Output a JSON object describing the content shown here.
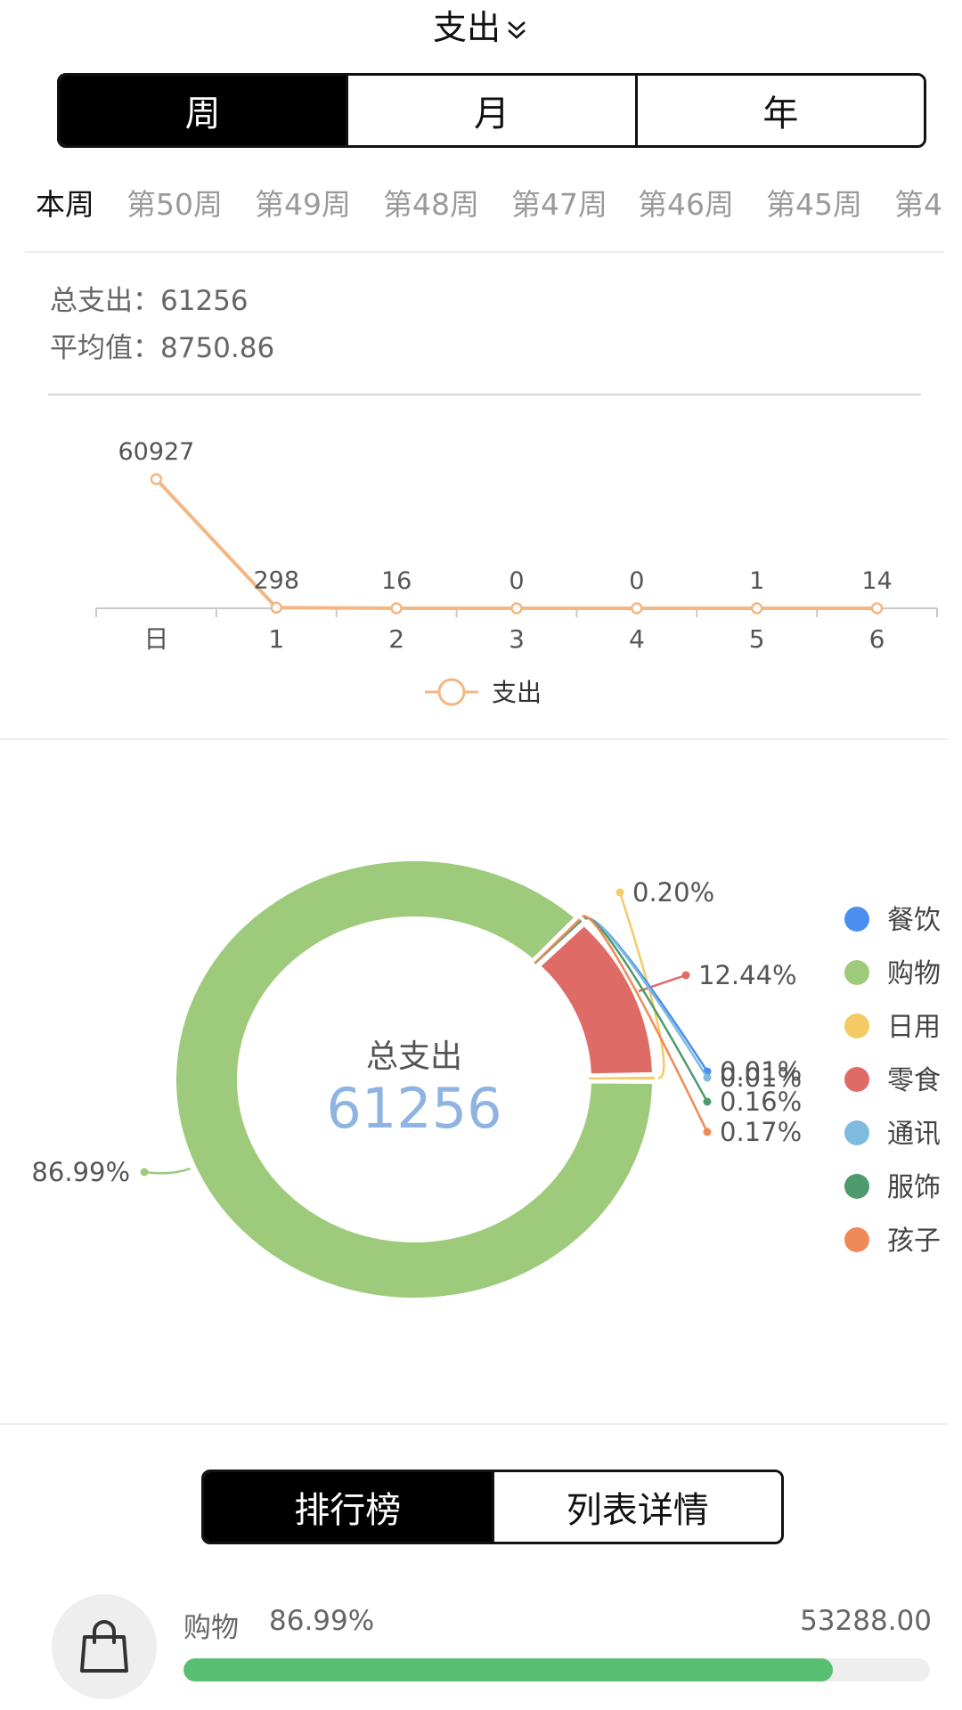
{
  "header": {
    "title": "支出"
  },
  "period_switch": {
    "options": [
      "周",
      "月",
      "年"
    ],
    "selected": "周"
  },
  "week_tabs": [
    "本周",
    "第50周",
    "第49周",
    "第48周",
    "第47周",
    "第46周",
    "第45周",
    "第4"
  ],
  "summary": {
    "total": "总支出：61256",
    "average": "平均值：8750.86"
  },
  "chart_data": [
    {
      "type": "line",
      "categories": [
        "日",
        "1",
        "2",
        "3",
        "4",
        "5",
        "6"
      ],
      "series": [
        {
          "name": "支出",
          "values": [
            60927,
            298,
            16,
            0,
            0,
            1,
            14
          ]
        }
      ],
      "data_labels": [
        "60927",
        "298",
        "16",
        "0",
        "0",
        "1",
        "14"
      ],
      "color": "#f4b683"
    },
    {
      "type": "pie",
      "center_title": "总支出",
      "center_value": "61256",
      "legend": [
        "餐饮",
        "购物",
        "日用",
        "零食",
        "通讯",
        "服饰",
        "孩子"
      ],
      "values": [
        0.01,
        86.99,
        0.2,
        12.44,
        0.01,
        0.16,
        0.17
      ],
      "labels": [
        "0.01%",
        "86.99%",
        "0.20%",
        "12.44%",
        "0.01%",
        "0.16%",
        "0.17%"
      ],
      "colors": [
        "#4b8ef1",
        "#9dcb7b",
        "#f4ca64",
        "#df6b67",
        "#7fbbdc",
        "#4d9a6c",
        "#ef8a58"
      ]
    }
  ],
  "rank_switch": {
    "options": [
      "排行榜",
      "列表详情"
    ],
    "selected": "排行榜"
  },
  "ranking": [
    {
      "icon": "shopping-bag-icon",
      "name": "购物",
      "percent": "86.99%",
      "value": "53288.00",
      "fill": 0.8699,
      "bar_color": "#58bf72"
    }
  ]
}
